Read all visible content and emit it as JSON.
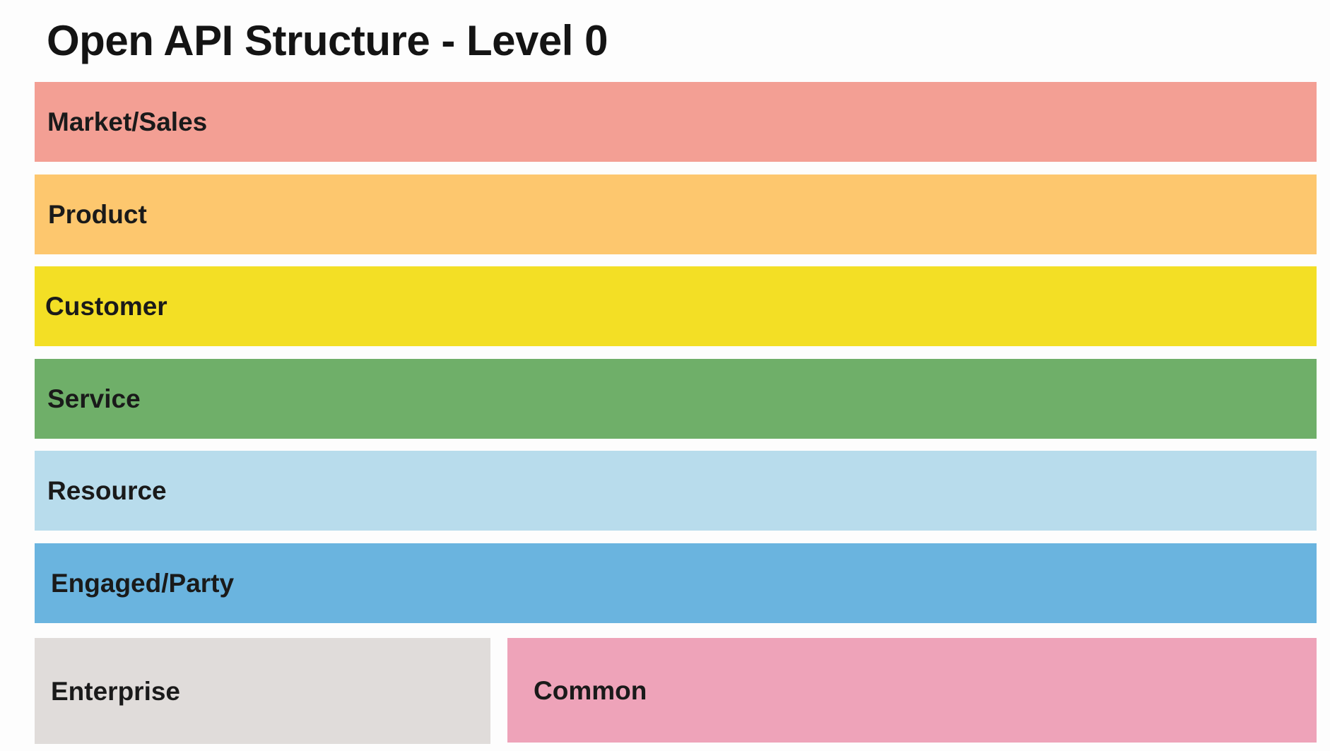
{
  "title": "Open API Structure - Level 0",
  "bands": {
    "market_sales": {
      "label": "Market/Sales",
      "color": "#f39f94"
    },
    "product": {
      "label": "Product",
      "color": "#fdc76e"
    },
    "customer": {
      "label": "Customer",
      "color": "#f3df25"
    },
    "service": {
      "label": "Service",
      "color": "#6faf69"
    },
    "resource": {
      "label": "Resource",
      "color": "#b8dcec"
    },
    "engaged_party": {
      "label": "Engaged/Party",
      "color": "#6ab4df"
    },
    "enterprise": {
      "label": "Enterprise",
      "color": "#e0dcda"
    },
    "common": {
      "label": "Common",
      "color": "#eea3b9"
    }
  }
}
